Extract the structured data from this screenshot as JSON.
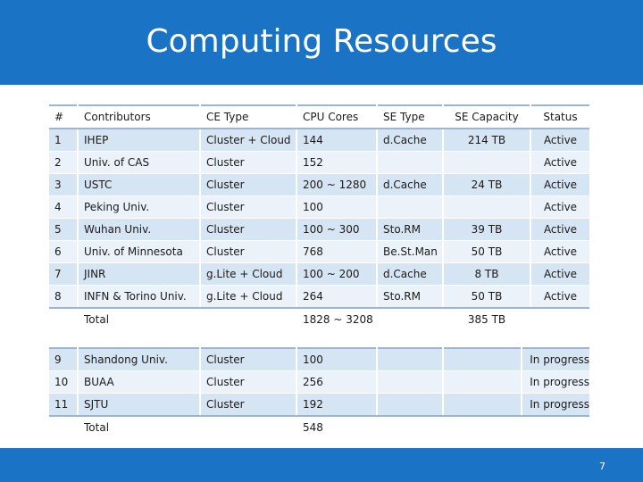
{
  "title": "Computing Resources",
  "page_number": "7",
  "table1": {
    "headers": [
      "#",
      "Contributors",
      "CE Type",
      "CPU Cores",
      "SE Type",
      "SE Capacity",
      "Status"
    ],
    "rows": [
      [
        "1",
        "IHEP",
        "Cluster + Cloud",
        "144",
        "d.Cache",
        "214 TB",
        "Active"
      ],
      [
        "2",
        "Univ. of CAS",
        "Cluster",
        "152",
        "",
        "",
        "Active"
      ],
      [
        "3",
        "USTC",
        "Cluster",
        "200 ~ 1280",
        "d.Cache",
        "24 TB",
        "Active"
      ],
      [
        "4",
        "Peking Univ.",
        "Cluster",
        "100",
        "",
        "",
        "Active"
      ],
      [
        "5",
        "Wuhan Univ.",
        "Cluster",
        "100 ~ 300",
        "Sto.RM",
        "39 TB",
        "Active"
      ],
      [
        "6",
        "Univ. of Minnesota",
        "Cluster",
        "768",
        "Be.St.Man",
        "50 TB",
        "Active"
      ],
      [
        "7",
        "JINR",
        "g.Lite + Cloud",
        "100 ~ 200",
        "d.Cache",
        "8 TB",
        "Active"
      ],
      [
        "8",
        "INFN & Torino Univ.",
        "g.Lite + Cloud",
        "264",
        "Sto.RM",
        "50 TB",
        "Active"
      ]
    ],
    "total_label": "Total",
    "total_cores": "1828 ~ 3208",
    "total_capacity": "385 TB"
  },
  "table2": {
    "rows": [
      [
        "9",
        "Shandong Univ.",
        "Cluster",
        "100",
        "",
        "",
        "In progress"
      ],
      [
        "10",
        "BUAA",
        "Cluster",
        "256",
        "",
        "",
        "In progress"
      ],
      [
        "11",
        "SJTU",
        "Cluster",
        "192",
        "",
        "",
        "In progress"
      ]
    ],
    "total_label": "Total",
    "total_cores": "548"
  },
  "colors": {
    "header_bar": "#1a73c4",
    "row_dark": "#d6e5f4",
    "row_light": "#ebf2fa",
    "rule": "#9ab6d6"
  }
}
